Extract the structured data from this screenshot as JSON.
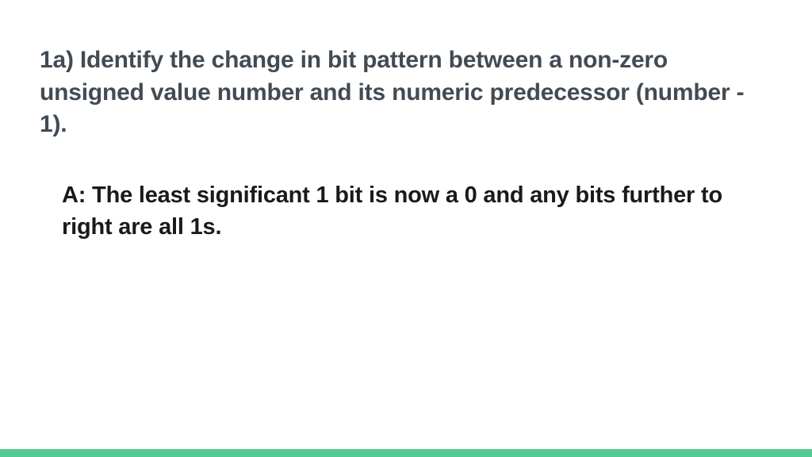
{
  "slide": {
    "question": "1a) Identify the change in bit pattern between a non-zero unsigned value number and its numeric predecessor (number - 1).",
    "answer": "A: The least significant 1 bit is now a 0 and any bits further to right are all 1s."
  },
  "styling": {
    "background_color": "#ffffff",
    "question_color": "#424b54",
    "answer_color": "#1a1a1a",
    "footer_bar_color": "#55c990",
    "question_fontsize": 30,
    "answer_fontsize": 29,
    "font_weight": 700,
    "footer_bar_height": 10
  }
}
